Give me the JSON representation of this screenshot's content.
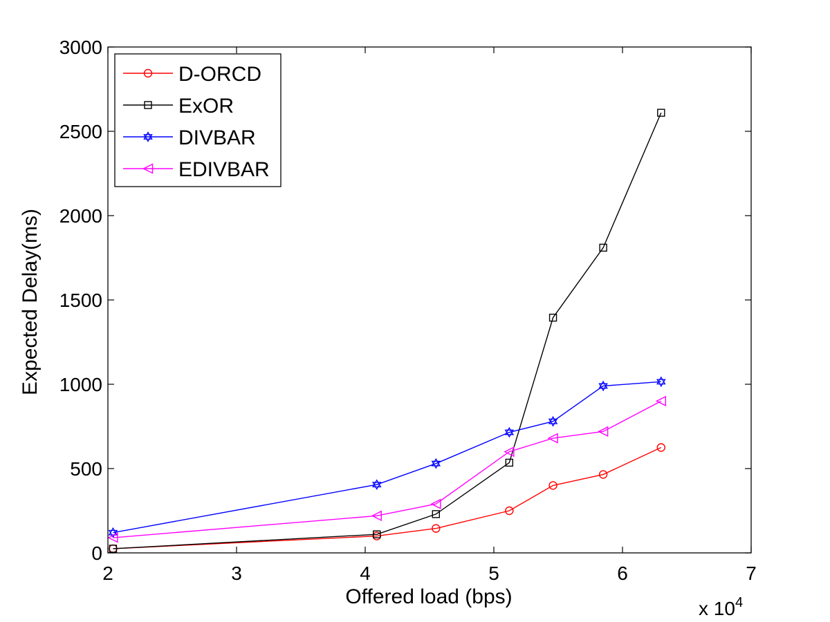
{
  "chart_data": {
    "type": "line",
    "title": "",
    "xlabel": "Offered load (bps)",
    "ylabel": "Expected Delay(ms)",
    "x_exponent_label": "x 10",
    "x_exponent_power": "4",
    "xlim": [
      2,
      7
    ],
    "ylim": [
      0,
      3000
    ],
    "xticks": [
      2,
      3,
      4,
      5,
      6,
      7
    ],
    "yticks": [
      0,
      500,
      1000,
      1500,
      2000,
      2500,
      3000
    ],
    "grid": false,
    "legend_position": "top-left",
    "series": [
      {
        "name": "D-ORCD",
        "color": "#ff0000",
        "marker": "circle",
        "x": [
          2.04,
          4.09,
          4.55,
          5.12,
          5.46,
          5.85,
          6.3
        ],
        "y": [
          25,
          100,
          145,
          250,
          400,
          465,
          625
        ]
      },
      {
        "name": "ExOR",
        "color": "#000000",
        "marker": "square",
        "x": [
          2.04,
          4.09,
          4.55,
          5.12,
          5.46,
          5.85,
          6.3
        ],
        "y": [
          25,
          110,
          230,
          535,
          1395,
          1810,
          2610
        ]
      },
      {
        "name": "DIVBAR",
        "color": "#0000ff",
        "marker": "hexagram",
        "x": [
          2.04,
          4.09,
          4.55,
          5.12,
          5.46,
          5.85,
          6.3
        ],
        "y": [
          120,
          405,
          530,
          715,
          780,
          990,
          1015
        ]
      },
      {
        "name": "EDIVBAR",
        "color": "#ff00ff",
        "marker": "triangle-left",
        "x": [
          2.04,
          4.09,
          4.55,
          5.12,
          5.46,
          5.85,
          6.3
        ],
        "y": [
          90,
          220,
          290,
          600,
          680,
          720,
          900
        ]
      }
    ]
  }
}
